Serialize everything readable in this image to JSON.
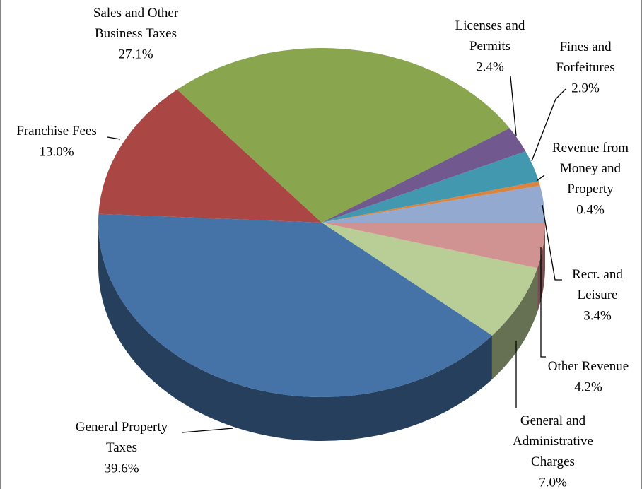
{
  "chart_data": {
    "type": "pie",
    "categories": [
      "Other Revenue",
      "General and\nAdministrative\nCharges",
      "General Property\nTaxes",
      "Franchise Fees",
      "Sales and Other\nBusiness Taxes",
      "Licenses and\nPermits",
      "Fines and\nForfeitures",
      "Revenue from\nMoney and\nProperty",
      "Recr.  and\nLeisure"
    ],
    "values": [
      4.2,
      7.0,
      39.6,
      13.0,
      27.1,
      2.4,
      2.9,
      0.4,
      3.4
    ],
    "value_labels": [
      "4.2%",
      "7.0%",
      "39.6%",
      "13.0%",
      "27.1%",
      "2.4%",
      "2.9%",
      "0.4%",
      "3.4%"
    ],
    "colors": [
      "#d19392",
      "#b9cd96",
      "#4572a7",
      "#aa4643",
      "#89a54e",
      "#71588f",
      "#4198af",
      "#db843d",
      "#93a9cf"
    ]
  }
}
